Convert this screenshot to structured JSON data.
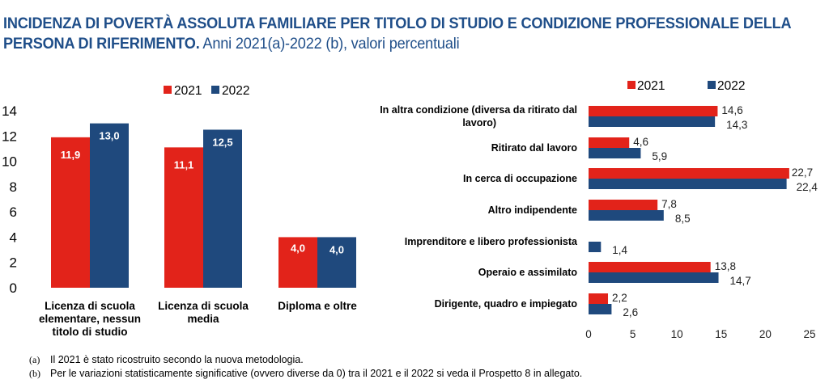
{
  "title": {
    "bold": "INCIDENZA DI POVERTÀ ASSOLUTA FAMILIARE PER TITOLO DI STUDIO E CONDIZIONE PROFESSIONALE DELLA",
    "bold_line2": "PERSONA DI RIFERIMENTO.",
    "subtitle": " Anni 2021(a)-2022 (b), valori percentuali"
  },
  "colors": {
    "s2021": "#e2231a",
    "s2022": "#1f497d",
    "title": "#1f4e89"
  },
  "chart_data": [
    {
      "type": "bar",
      "title": "Titolo di studio",
      "categories": [
        [
          "Licenza di scuola",
          "elementare, nessun",
          "titolo di studio"
        ],
        [
          "Licenza di scuola",
          "media"
        ],
        [
          "Diploma e oltre"
        ]
      ],
      "series": [
        {
          "name": "2021",
          "values": [
            11.9,
            11.1,
            4.0
          ],
          "labels": [
            "11,9",
            "11,1",
            "4,0"
          ]
        },
        {
          "name": "2022",
          "values": [
            13.0,
            12.5,
            4.0
          ],
          "labels": [
            "13,0",
            "12,5",
            "4,0"
          ]
        }
      ],
      "ylim": [
        0,
        14
      ],
      "yticks": [
        "0",
        "2",
        "4",
        "6",
        "8",
        "10",
        "12",
        "14"
      ],
      "ytick_values": [
        0,
        2,
        4,
        6,
        8,
        10,
        12,
        14
      ],
      "legend": "top-center",
      "grid": false
    },
    {
      "type": "bar",
      "orientation": "horizontal",
      "title": "Condizione professionale",
      "categories": [
        [
          "In altra condizione (diversa da ritirato dal",
          "lavoro)"
        ],
        [
          "Ritirato dal lavoro"
        ],
        [
          "In cerca di occupazione"
        ],
        [
          "Altro indipendente"
        ],
        [
          "Imprenditore e libero professionista"
        ],
        [
          "Operaio e assimilato"
        ],
        [
          "Dirigente, quadro e impiegato"
        ]
      ],
      "series": [
        {
          "name": "2021",
          "values": [
            14.6,
            4.6,
            22.7,
            7.8,
            null,
            13.8,
            2.2
          ],
          "labels": [
            "14,6",
            "4,6",
            "22,7",
            "7,8",
            "",
            "13,8",
            "2,2"
          ]
        },
        {
          "name": "2022",
          "values": [
            14.3,
            5.9,
            22.4,
            8.5,
            1.4,
            14.7,
            2.6
          ],
          "labels": [
            "14,3",
            "5,9",
            "22,4",
            "8,5",
            "1,4",
            "14,7",
            "2,6"
          ]
        }
      ],
      "xlim": [
        0,
        25
      ],
      "xticks": [
        "0",
        "5",
        "10",
        "15",
        "20",
        "25"
      ],
      "xtick_values": [
        0,
        5,
        10,
        15,
        20,
        25
      ],
      "legend": "top-right",
      "grid": false
    }
  ],
  "footnotes": [
    {
      "mark": "(a)",
      "text": "Il 2021 è stato ricostruito secondo la nuova metodologia."
    },
    {
      "mark": "(b)",
      "text": "Per le variazioni statisticamente significative (ovvero diverse da 0) tra il 2021 e il 2022 si veda il Prospetto 8 in allegato."
    }
  ]
}
